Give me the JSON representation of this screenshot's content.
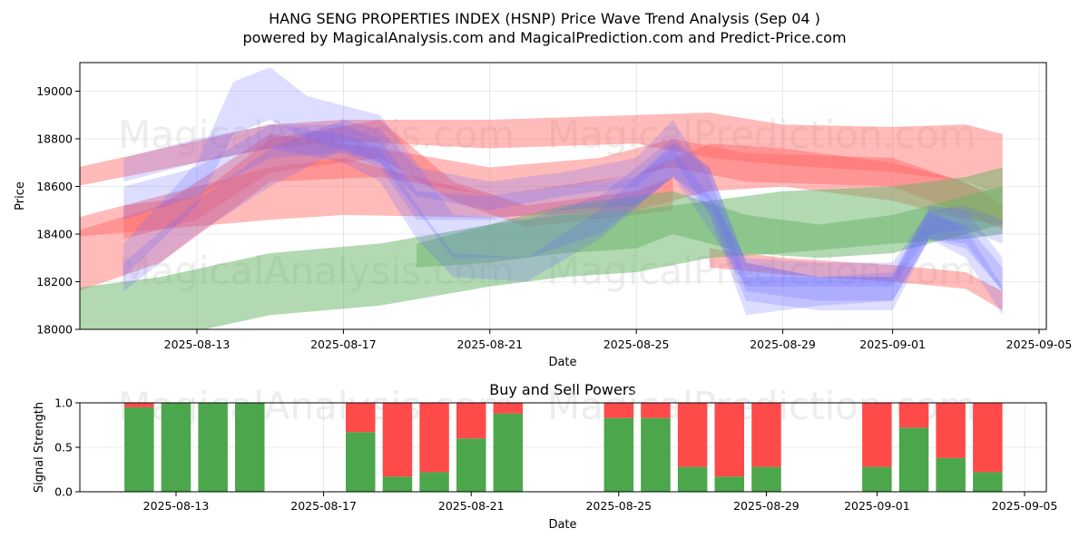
{
  "title_line1": "HANG SENG PROPERTIES INDEX (HSNP) Price Wave Trend Analysis (Sep 04 )",
  "title_line2": "powered by MagicalAnalysis.com and MagicalPrediction.com and Predict-Price.com",
  "watermark_1": "MagicalAnalysis.com",
  "watermark_2": "MagicalPrediction.com",
  "colors": {
    "green": "#4ca64c",
    "red": "#ff4a4a",
    "blue": "#6666ff",
    "red_band": "#ff6666",
    "green_band": "#66b366"
  },
  "chart_data": [
    {
      "type": "area",
      "title": "",
      "xlabel": "Date",
      "ylabel": "Price",
      "x_range": [
        "2025-08-09",
        "2025-09-05"
      ],
      "ylim": [
        18000,
        19120
      ],
      "x_ticks": [
        "2025-08-13",
        "2025-08-17",
        "2025-08-21",
        "2025-08-25",
        "2025-08-29",
        "2025-09-01",
        "2025-09-05"
      ],
      "y_ticks": [
        18000,
        18200,
        18400,
        18600,
        18800,
        19000
      ],
      "grid": true,
      "series": [
        {
          "color": "red",
          "bands": [
            {
              "alpha": 0.45,
              "points": [
                [
                  "2025-08-09",
                  18580,
                  18655
                ],
                [
                  "2025-08-15",
                  18760,
                  18860
                ],
                [
                  "2025-08-17",
                  18790,
                  18880
                ],
                [
                  "2025-08-21",
                  18760,
                  18880
                ],
                [
                  "2025-08-25",
                  18780,
                  18900
                ],
                [
                  "2025-08-27",
                  18720,
                  18910
                ],
                [
                  "2025-08-29",
                  18690,
                  18860
                ],
                [
                  "2025-09-01",
                  18660,
                  18850
                ],
                [
                  "2025-09-03",
                  18620,
                  18860
                ],
                [
                  "2025-09-04",
                  18560,
                  18820
                ]
              ]
            },
            {
              "alpha": 0.45,
              "points": [
                [
                  "2025-08-09",
                  18380,
                  18440
                ],
                [
                  "2025-08-15",
                  18460,
                  18680
                ],
                [
                  "2025-08-17",
                  18480,
                  18720
                ],
                [
                  "2025-08-21",
                  18470,
                  18560
                ],
                [
                  "2025-08-25",
                  18500,
                  18650
                ],
                [
                  "2025-08-27",
                  18580,
                  18780
                ],
                [
                  "2025-08-29",
                  18600,
                  18760
                ],
                [
                  "2025-09-01",
                  18540,
                  18700
                ],
                [
                  "2025-09-03",
                  18460,
                  18620
                ],
                [
                  "2025-09-04",
                  18440,
                  18520
                ]
              ]
            },
            {
              "alpha": 0.45,
              "points": [
                [
                  "2025-08-09",
                  18120,
                  18380
                ],
                [
                  "2025-08-12",
                  18280,
                  18520
                ],
                [
                  "2025-08-15",
                  18620,
                  18820
                ],
                [
                  "2025-08-18",
                  18640,
                  18760
                ],
                [
                  "2025-08-21",
                  18560,
                  18680
                ],
                [
                  "2025-08-24",
                  18620,
                  18720
                ],
                [
                  "2025-08-26",
                  18680,
                  18800
                ],
                [
                  "2025-08-28",
                  18620,
                  18740
                ],
                [
                  "2025-09-01",
                  18600,
                  18720
                ],
                [
                  "2025-09-04",
                  18420,
                  18560
                ]
              ]
            },
            {
              "alpha": 0.45,
              "points": [
                [
                  "2025-08-27",
                  18260,
                  18340
                ],
                [
                  "2025-08-29",
                  18230,
                  18300
                ],
                [
                  "2025-09-01",
                  18200,
                  18270
                ],
                [
                  "2025-09-03",
                  18170,
                  18240
                ],
                [
                  "2025-09-04",
                  18080,
                  18160
                ]
              ]
            },
            {
              "alpha": 0.45,
              "points": [
                [
                  "2025-08-11",
                  18380,
                  18520
                ],
                [
                  "2025-08-13",
                  18460,
                  18560
                ],
                [
                  "2025-08-15",
                  18660,
                  18800
                ],
                [
                  "2025-08-18",
                  18720,
                  18880
                ],
                [
                  "2025-08-20",
                  18540,
                  18620
                ],
                [
                  "2025-08-22",
                  18430,
                  18520
                ],
                [
                  "2025-08-25",
                  18480,
                  18580
                ],
                [
                  "2025-08-26",
                  18500,
                  18640
                ]
              ]
            }
          ]
        },
        {
          "color": "green",
          "bands": [
            {
              "alpha": 0.5,
              "points": [
                [
                  "2025-08-09",
                  17920,
                  18160
                ],
                [
                  "2025-08-12",
                  17960,
                  18220
                ],
                [
                  "2025-08-15",
                  18060,
                  18320
                ],
                [
                  "2025-08-18",
                  18100,
                  18360
                ],
                [
                  "2025-08-21",
                  18180,
                  18440
                ],
                [
                  "2025-08-23",
                  18220,
                  18480
                ],
                [
                  "2025-08-25",
                  18240,
                  18500
                ],
                [
                  "2025-08-27",
                  18300,
                  18540
                ],
                [
                  "2025-08-29",
                  18320,
                  18580
                ],
                [
                  "2025-09-01",
                  18360,
                  18600
                ],
                [
                  "2025-09-03",
                  18380,
                  18640
                ],
                [
                  "2025-09-04",
                  18400,
                  18680
                ]
              ]
            },
            {
              "alpha": 0.5,
              "points": [
                [
                  "2025-08-19",
                  18260,
                  18360
                ],
                [
                  "2025-08-21",
                  18280,
                  18440
                ],
                [
                  "2025-08-23",
                  18320,
                  18520
                ],
                [
                  "2025-08-25",
                  18340,
                  18560
                ],
                [
                  "2025-08-26",
                  18400,
                  18580
                ],
                [
                  "2025-08-28",
                  18320,
                  18480
                ],
                [
                  "2025-08-30",
                  18300,
                  18440
                ],
                [
                  "2025-09-01",
                  18320,
                  18480
                ],
                [
                  "2025-09-03",
                  18400,
                  18560
                ],
                [
                  "2025-09-04",
                  18440,
                  18600
                ]
              ]
            }
          ]
        },
        {
          "color": "blue",
          "bands": [
            {
              "alpha": 0.22,
              "points": [
                [
                  "2025-08-11",
                  18620,
                  18720
                ],
                [
                  "2025-08-13",
                  18700,
                  18800
                ],
                [
                  "2025-08-15",
                  18760,
                  18860
                ],
                [
                  "2025-08-17",
                  18700,
                  18820
                ],
                [
                  "2025-08-18",
                  18620,
                  18760
                ],
                [
                  "2025-08-19",
                  18380,
                  18520
                ],
                [
                  "2025-08-20",
                  18220,
                  18320
                ],
                [
                  "2025-08-22",
                  18200,
                  18300
                ],
                [
                  "2025-08-24",
                  18380,
                  18500
                ],
                [
                  "2025-08-26",
                  18640,
                  18780
                ],
                [
                  "2025-08-27",
                  18540,
                  18680
                ],
                [
                  "2025-08-28",
                  18160,
                  18280
                ],
                [
                  "2025-08-30",
                  18120,
                  18220
                ],
                [
                  "2025-09-01",
                  18120,
                  18220
                ],
                [
                  "2025-09-02",
                  18380,
                  18480
                ],
                [
                  "2025-09-03",
                  18340,
                  18440
                ],
                [
                  "2025-09-04",
                  18160,
                  18260
                ]
              ]
            },
            {
              "alpha": 0.22,
              "points": [
                [
                  "2025-08-11",
                  18220,
                  18360
                ],
                [
                  "2025-08-13",
                  18520,
                  18700
                ],
                [
                  "2025-08-14",
                  18820,
                  19040
                ],
                [
                  "2025-08-15",
                  18880,
                  19100
                ],
                [
                  "2025-08-16",
                  18800,
                  18980
                ],
                [
                  "2025-08-18",
                  18700,
                  18900
                ],
                [
                  "2025-08-19",
                  18500,
                  18700
                ],
                [
                  "2025-08-20",
                  18300,
                  18480
                ],
                [
                  "2025-08-22",
                  18300,
                  18460
                ],
                [
                  "2025-08-24",
                  18400,
                  18560
                ],
                [
                  "2025-08-26",
                  18640,
                  18800
                ],
                [
                  "2025-08-27",
                  18500,
                  18680
                ],
                [
                  "2025-08-28",
                  18120,
                  18280
                ],
                [
                  "2025-08-30",
                  18080,
                  18220
                ],
                [
                  "2025-09-01",
                  18080,
                  18220
                ],
                [
                  "2025-09-02",
                  18380,
                  18520
                ],
                [
                  "2025-09-03",
                  18360,
                  18500
                ],
                [
                  "2025-09-04",
                  18160,
                  18300
                ]
              ]
            },
            {
              "alpha": 0.22,
              "points": [
                [
                  "2025-08-11",
                  18160,
                  18280
                ],
                [
                  "2025-08-13",
                  18400,
                  18540
                ],
                [
                  "2025-08-15",
                  18600,
                  18760
                ],
                [
                  "2025-08-17",
                  18760,
                  18880
                ],
                [
                  "2025-08-18",
                  18700,
                  18840
                ],
                [
                  "2025-08-19",
                  18560,
                  18680
                ],
                [
                  "2025-08-21",
                  18500,
                  18620
                ],
                [
                  "2025-08-23",
                  18560,
                  18660
                ],
                [
                  "2025-08-25",
                  18600,
                  18720
                ],
                [
                  "2025-08-26",
                  18720,
                  18880
                ],
                [
                  "2025-08-27",
                  18480,
                  18640
                ],
                [
                  "2025-08-28",
                  18060,
                  18220
                ],
                [
                  "2025-08-30",
                  18100,
                  18220
                ],
                [
                  "2025-09-01",
                  18120,
                  18240
                ],
                [
                  "2025-09-02",
                  18380,
                  18500
                ],
                [
                  "2025-09-03",
                  18300,
                  18420
                ],
                [
                  "2025-09-04",
                  18060,
                  18180
                ]
              ]
            },
            {
              "alpha": 0.22,
              "points": [
                [
                  "2025-08-11",
                  18460,
                  18600
                ],
                [
                  "2025-08-13",
                  18560,
                  18680
                ],
                [
                  "2025-08-15",
                  18720,
                  18860
                ],
                [
                  "2025-08-17",
                  18740,
                  18860
                ],
                [
                  "2025-08-18",
                  18680,
                  18800
                ],
                [
                  "2025-08-19",
                  18460,
                  18580
                ],
                [
                  "2025-08-21",
                  18460,
                  18560
                ],
                [
                  "2025-08-23",
                  18500,
                  18600
                ],
                [
                  "2025-08-25",
                  18520,
                  18640
                ],
                [
                  "2025-08-26",
                  18640,
                  18760
                ],
                [
                  "2025-08-27",
                  18420,
                  18560
                ],
                [
                  "2025-08-28",
                  18180,
                  18300
                ],
                [
                  "2025-08-30",
                  18180,
                  18280
                ],
                [
                  "2025-09-01",
                  18180,
                  18280
                ],
                [
                  "2025-09-02",
                  18400,
                  18500
                ],
                [
                  "2025-09-03",
                  18420,
                  18520
                ],
                [
                  "2025-09-04",
                  18360,
                  18460
                ]
              ]
            }
          ]
        }
      ]
    },
    {
      "type": "bar",
      "title": "Buy and Sell Powers",
      "xlabel": "Date",
      "ylabel": "Signal Strength",
      "x_range": [
        "2025-08-09",
        "2025-09-05"
      ],
      "ylim": [
        0,
        1
      ],
      "x_ticks": [
        "2025-08-13",
        "2025-08-17",
        "2025-08-21",
        "2025-08-25",
        "2025-08-29",
        "2025-09-01",
        "2025-09-05"
      ],
      "y_ticks": [
        "0.0",
        "0.5",
        "1.0"
      ],
      "grid": true,
      "categories": [
        "2025-08-12",
        "2025-08-13",
        "2025-08-14",
        "2025-08-15",
        "2025-08-18",
        "2025-08-19",
        "2025-08-20",
        "2025-08-21",
        "2025-08-22",
        "2025-08-25",
        "2025-08-26",
        "2025-08-27",
        "2025-08-28",
        "2025-08-29",
        "2025-09-01",
        "2025-09-02",
        "2025-09-03",
        "2025-09-04"
      ],
      "series": [
        {
          "color": "green",
          "values": [
            0.95,
            1.0,
            1.0,
            1.0,
            0.67,
            0.17,
            0.22,
            0.6,
            0.88,
            0.83,
            0.83,
            0.28,
            0.17,
            0.28,
            0.28,
            0.72,
            0.38,
            0.22
          ]
        },
        {
          "color": "red",
          "values": [
            0.05,
            0.0,
            0.0,
            0.0,
            0.33,
            0.83,
            0.78,
            0.4,
            0.12,
            0.17,
            0.17,
            0.72,
            0.83,
            0.72,
            0.72,
            0.28,
            0.62,
            0.78
          ]
        }
      ]
    }
  ]
}
